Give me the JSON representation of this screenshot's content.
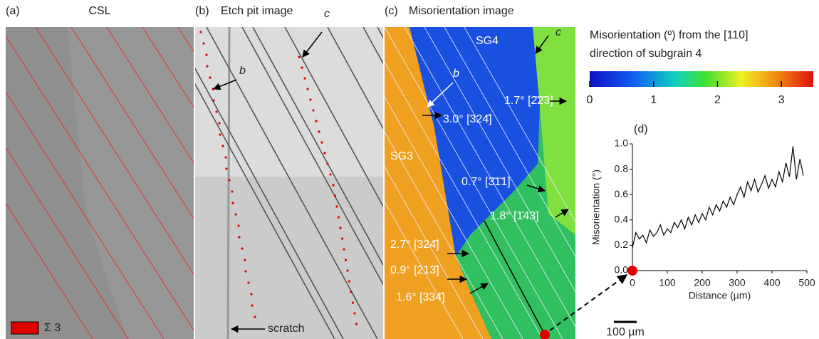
{
  "panels": [
    {
      "label": "(a)",
      "title": "CSL"
    },
    {
      "label": "(b)",
      "title": "Etch pit image"
    },
    {
      "label": "(c)",
      "title": "Misorientation image"
    }
  ],
  "panel_a": {
    "legend": "Σ 3"
  },
  "panel_b": {
    "annotations": [
      "b",
      "c",
      "scratch"
    ]
  },
  "panel_c": {
    "annotations": [
      "SG4",
      "SG3",
      "b",
      "c",
      "1.7° [2̄2̄3]",
      "3.0° [324̄]",
      "0.7° [3̄1̄1]",
      "1.8° [1̄43]",
      "2.7° [324̄]",
      "0.9° [213̄]",
      "1.6° [334̄]"
    ]
  },
  "colorbar": {
    "title": [
      "Misorientation (º) from the [110]",
      "direction of subgrain 4"
    ],
    "lim": [
      0,
      3.5
    ],
    "ticks": [
      0,
      1,
      2,
      3
    ]
  },
  "scale_bar": "100 µm",
  "chart_data": {
    "type": "line",
    "label": "(d)",
    "x_label": "Distance (µm)",
    "y_label": "Misorientation (°)",
    "xlim": [
      0,
      500
    ],
    "ylim": [
      0,
      1
    ],
    "xticks": [
      0,
      100,
      200,
      300,
      400,
      500
    ],
    "yticks": [
      {
        "value": 0,
        "label": "0.0"
      },
      0.2,
      0.4,
      0.6,
      0.8,
      {
        "value": 1,
        "label": "1.0"
      }
    ],
    "x": [
      0,
      10,
      20,
      30,
      40,
      50,
      60,
      70,
      80,
      90,
      100,
      110,
      120,
      130,
      140,
      150,
      160,
      170,
      180,
      190,
      200,
      210,
      220,
      230,
      240,
      250,
      260,
      270,
      280,
      290,
      300,
      310,
      320,
      330,
      340,
      350,
      360,
      370,
      380,
      390,
      400,
      410,
      420,
      430,
      440,
      450,
      460,
      470,
      480,
      490
    ],
    "series": [
      {
        "color": "#000000",
        "values": [
          0.18,
          0.3,
          0.25,
          0.28,
          0.22,
          0.32,
          0.27,
          0.3,
          0.36,
          0.28,
          0.33,
          0.3,
          0.38,
          0.34,
          0.4,
          0.33,
          0.42,
          0.36,
          0.44,
          0.38,
          0.45,
          0.4,
          0.5,
          0.44,
          0.52,
          0.47,
          0.55,
          0.5,
          0.58,
          0.52,
          0.6,
          0.66,
          0.58,
          0.7,
          0.63,
          0.72,
          0.62,
          0.68,
          0.75,
          0.65,
          0.72,
          0.66,
          0.78,
          0.7,
          0.85,
          0.74,
          0.98,
          0.72,
          0.88,
          0.75
        ]
      }
    ]
  }
}
